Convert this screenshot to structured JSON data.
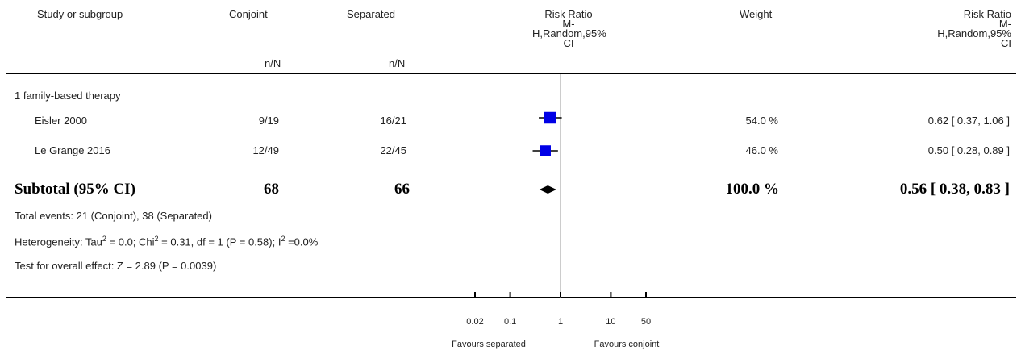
{
  "header": {
    "study": "Study or subgroup",
    "conjoint": "Conjoint",
    "separated": "Separated",
    "conjoint_sub": "n/N",
    "separated_sub": "n/N",
    "rr_plot": [
      "Risk Ratio",
      "M-",
      "H,Random,95%",
      "CI"
    ],
    "weight": "Weight",
    "rr_text": [
      "Risk Ratio",
      "M-",
      "H,Random,95%",
      "CI"
    ]
  },
  "subgroup_title": "1 family-based therapy",
  "rows": [
    {
      "study": "Eisler 2000",
      "conjoint": "9/19",
      "separated": "16/21",
      "weight": "54.0 %",
      "rr": "0.62 [ 0.37, 1.06 ]"
    },
    {
      "study": "Le Grange 2016",
      "conjoint": "12/49",
      "separated": "22/45",
      "weight": "46.0 %",
      "rr": "0.50 [ 0.28, 0.89 ]"
    }
  ],
  "subtotal": {
    "label": "Subtotal (95% CI)",
    "conjoint": "68",
    "separated": "66",
    "weight": "100.0 %",
    "rr": "0.56 [ 0.38, 0.83 ]"
  },
  "notes": {
    "events": "Total events: 21 (Conjoint), 38 (Separated)",
    "het_a": "Heterogeneity: Tau",
    "het_b": " = 0.0; Chi",
    "het_c": " = 0.31, df = 1 (P = 0.58); I",
    "het_d": " =0.0%",
    "sup": "2",
    "overall": "Test for overall effect: Z = 2.89 (P = 0.0039)"
  },
  "chart_data": {
    "type": "forest",
    "scale": "log",
    "xlim": [
      0.02,
      50
    ],
    "ticks": [
      0.02,
      0.1,
      1,
      10,
      50
    ],
    "tick_labels": [
      "0.02",
      "0.1",
      "1",
      "10",
      "50"
    ],
    "favours_left": "Favours separated",
    "favours_right": "Favours conjoint",
    "studies": [
      {
        "name": "Eisler 2000",
        "rr": 0.62,
        "lo": 0.37,
        "hi": 1.06,
        "weight": 54.0
      },
      {
        "name": "Le Grange 2016",
        "rr": 0.5,
        "lo": 0.28,
        "hi": 0.89,
        "weight": 46.0
      }
    ],
    "pooled": {
      "rr": 0.56,
      "lo": 0.38,
      "hi": 0.83
    },
    "colors": {
      "marker": "#0000e6",
      "line": "#000000",
      "ref_line": "#999999"
    }
  }
}
